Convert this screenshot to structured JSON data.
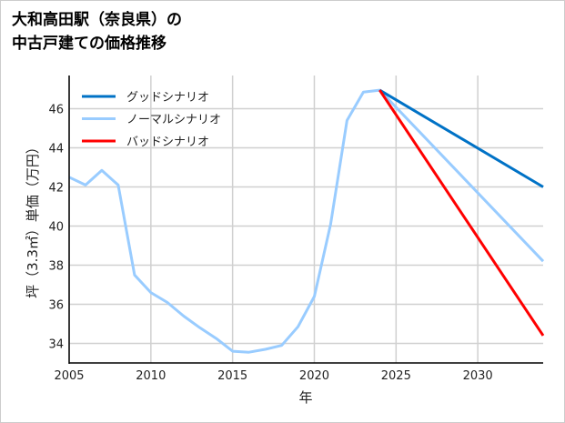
{
  "chart_data": {
    "type": "line",
    "title_lines": [
      "大和高田駅（奈良県）の",
      "中古戸建ての価格推移"
    ],
    "xlabel": "年",
    "ylabel": "坪（3.3㎡）単価（万円）",
    "xlim": [
      2005,
      2034
    ],
    "ylim": [
      33,
      47.7
    ],
    "xticks": [
      2005,
      2010,
      2015,
      2020,
      2025,
      2030
    ],
    "yticks": [
      34,
      36,
      38,
      40,
      42,
      44,
      46
    ],
    "grid": true,
    "legend_position": "top-left",
    "series": [
      {
        "name": "グッドシナリオ",
        "color": "#0072c6",
        "x": [
          2024,
          2034
        ],
        "y": [
          46.95,
          42.0
        ]
      },
      {
        "name": "ノーマルシナリオ",
        "color": "#99ccff",
        "x": [
          2005,
          2006,
          2007,
          2008,
          2009,
          2010,
          2011,
          2012,
          2013,
          2014,
          2015,
          2016,
          2017,
          2018,
          2019,
          2020,
          2021,
          2022,
          2023,
          2024,
          2034
        ],
        "y": [
          42.5,
          42.1,
          42.85,
          42.1,
          37.5,
          36.6,
          36.1,
          35.4,
          34.8,
          34.25,
          33.6,
          33.55,
          33.7,
          33.9,
          34.85,
          36.4,
          40.1,
          45.4,
          46.85,
          46.95,
          38.2
        ]
      },
      {
        "name": "バッドシナリオ",
        "color": "#ff0000",
        "x": [
          2024,
          2034
        ],
        "y": [
          46.95,
          34.4
        ]
      }
    ]
  }
}
